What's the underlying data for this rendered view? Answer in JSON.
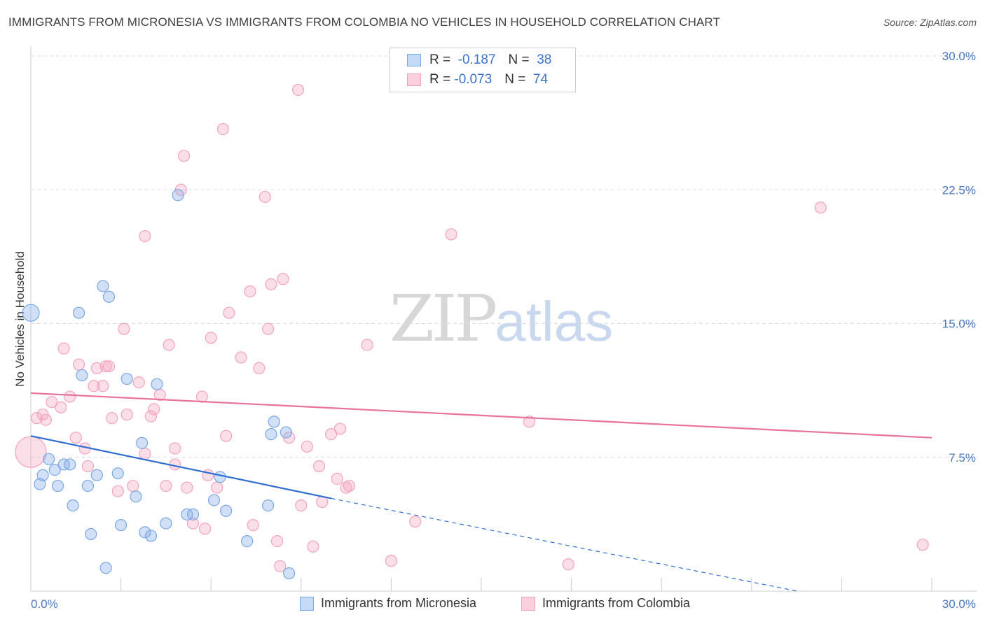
{
  "title": "IMMIGRANTS FROM MICRONESIA VS IMMIGRANTS FROM COLOMBIA NO VEHICLES IN HOUSEHOLD CORRELATION CHART",
  "source": "Source: ZipAtlas.com",
  "watermark": {
    "zip": "ZIP",
    "atlas": "atlas"
  },
  "colors": {
    "micronesia": "#7aa7e6",
    "colombia": "#f4a3bd",
    "micronesia_line": "#2f6fd1",
    "colombia_line": "#e8729a"
  },
  "legend": {
    "micronesia": {
      "r_label": "R = ",
      "r_value": "-0.187",
      "n_label": "N = ",
      "n_value": "38"
    },
    "colombia": {
      "r_label": "R = ",
      "r_value": "-0.073",
      "n_label": "N = ",
      "n_value": "74"
    }
  },
  "chart_data": {
    "type": "scatter",
    "title": "IMMIGRANTS FROM MICRONESIA VS IMMIGRANTS FROM COLOMBIA NO VEHICLES IN HOUSEHOLD CORRELATION CHART",
    "xlabel": "",
    "ylabel": "No Vehicles in Household",
    "xlim": [
      0,
      30
    ],
    "ylim": [
      0,
      30
    ],
    "x_tick_labels": [
      "0.0%",
      "30.0%"
    ],
    "y_tick_labels": [
      "7.5%",
      "15.0%",
      "22.5%",
      "30.0%"
    ],
    "y_ticks": [
      7.5,
      15.0,
      22.5,
      30.0
    ],
    "grid": true,
    "legend_position": "top-center",
    "series": [
      {
        "name": "Immigrants from Micronesia",
        "color": "#7aa7e6",
        "trend": {
          "x": [
            0,
            10
          ],
          "y": [
            8.7,
            5.2
          ],
          "dashed_extension_to": [
            30,
            -1.5
          ]
        },
        "points": [
          [
            0,
            15.6
          ],
          [
            0.3,
            6.0
          ],
          [
            0.4,
            6.5
          ],
          [
            0.6,
            7.4
          ],
          [
            0.8,
            6.8
          ],
          [
            0.9,
            5.9
          ],
          [
            1.1,
            7.1
          ],
          [
            1.3,
            7.1
          ],
          [
            1.4,
            4.8
          ],
          [
            1.6,
            15.6
          ],
          [
            1.7,
            12.1
          ],
          [
            1.9,
            5.9
          ],
          [
            2.0,
            3.2
          ],
          [
            2.2,
            6.5
          ],
          [
            2.4,
            17.1
          ],
          [
            2.5,
            1.3
          ],
          [
            2.6,
            16.5
          ],
          [
            2.9,
            6.6
          ],
          [
            3.0,
            3.7
          ],
          [
            3.2,
            11.9
          ],
          [
            3.5,
            5.3
          ],
          [
            3.7,
            8.3
          ],
          [
            3.8,
            3.3
          ],
          [
            4.0,
            3.1
          ],
          [
            4.2,
            11.6
          ],
          [
            4.5,
            3.8
          ],
          [
            4.9,
            22.2
          ],
          [
            5.2,
            4.3
          ],
          [
            5.4,
            4.3
          ],
          [
            6.1,
            5.1
          ],
          [
            6.3,
            6.4
          ],
          [
            6.5,
            4.5
          ],
          [
            7.2,
            2.8
          ],
          [
            7.9,
            4.8
          ],
          [
            8.0,
            8.8
          ],
          [
            8.1,
            9.5
          ],
          [
            8.5,
            8.9
          ],
          [
            8.6,
            1.0
          ]
        ]
      },
      {
        "name": "Immigrants from Colombia",
        "color": "#f4a3bd",
        "trend": {
          "x": [
            0,
            30
          ],
          "y": [
            11.1,
            8.6
          ]
        },
        "points": [
          [
            0,
            7.8
          ],
          [
            0.2,
            9.7
          ],
          [
            0.4,
            9.9
          ],
          [
            0.5,
            9.6
          ],
          [
            0.7,
            10.6
          ],
          [
            1.0,
            10.3
          ],
          [
            1.1,
            13.6
          ],
          [
            1.3,
            10.9
          ],
          [
            1.5,
            8.6
          ],
          [
            1.6,
            12.7
          ],
          [
            1.8,
            8.0
          ],
          [
            1.9,
            7.0
          ],
          [
            2.1,
            11.5
          ],
          [
            2.2,
            12.5
          ],
          [
            2.4,
            11.5
          ],
          [
            2.5,
            12.6
          ],
          [
            2.6,
            12.6
          ],
          [
            2.7,
            9.7
          ],
          [
            2.9,
            5.6
          ],
          [
            3.1,
            14.7
          ],
          [
            3.2,
            9.9
          ],
          [
            3.4,
            5.9
          ],
          [
            3.6,
            11.7
          ],
          [
            3.8,
            7.7
          ],
          [
            3.8,
            19.9
          ],
          [
            4.0,
            9.8
          ],
          [
            4.1,
            10.2
          ],
          [
            4.3,
            11.0
          ],
          [
            4.5,
            5.9
          ],
          [
            4.6,
            13.8
          ],
          [
            4.8,
            7.1
          ],
          [
            4.8,
            8.0
          ],
          [
            5.0,
            22.5
          ],
          [
            5.1,
            24.4
          ],
          [
            5.2,
            5.8
          ],
          [
            5.4,
            3.8
          ],
          [
            5.7,
            10.9
          ],
          [
            5.8,
            3.5
          ],
          [
            5.9,
            6.5
          ],
          [
            6.0,
            14.2
          ],
          [
            6.2,
            5.8
          ],
          [
            6.4,
            25.9
          ],
          [
            6.5,
            8.7
          ],
          [
            6.6,
            15.6
          ],
          [
            7.0,
            13.1
          ],
          [
            7.3,
            16.8
          ],
          [
            7.4,
            3.7
          ],
          [
            7.6,
            12.5
          ],
          [
            7.8,
            22.1
          ],
          [
            7.9,
            14.7
          ],
          [
            8.0,
            17.2
          ],
          [
            8.2,
            2.8
          ],
          [
            8.3,
            1.4
          ],
          [
            8.4,
            17.5
          ],
          [
            8.6,
            8.6
          ],
          [
            8.9,
            28.1
          ],
          [
            9.0,
            4.8
          ],
          [
            9.2,
            8.1
          ],
          [
            9.4,
            2.5
          ],
          [
            9.6,
            7.0
          ],
          [
            9.7,
            5.0
          ],
          [
            10.0,
            8.8
          ],
          [
            10.2,
            6.3
          ],
          [
            10.3,
            9.1
          ],
          [
            10.6,
            5.9
          ],
          [
            11.2,
            13.8
          ],
          [
            12.0,
            1.7
          ],
          [
            12.8,
            3.9
          ],
          [
            14.0,
            20.0
          ],
          [
            16.6,
            9.5
          ],
          [
            17.9,
            1.5
          ],
          [
            26.3,
            21.5
          ],
          [
            29.7,
            2.6
          ],
          [
            10.5,
            5.8
          ]
        ]
      }
    ]
  },
  "bottom_legend": {
    "micronesia": "Immigrants from Micronesia",
    "colombia": "Immigrants from Colombia"
  }
}
